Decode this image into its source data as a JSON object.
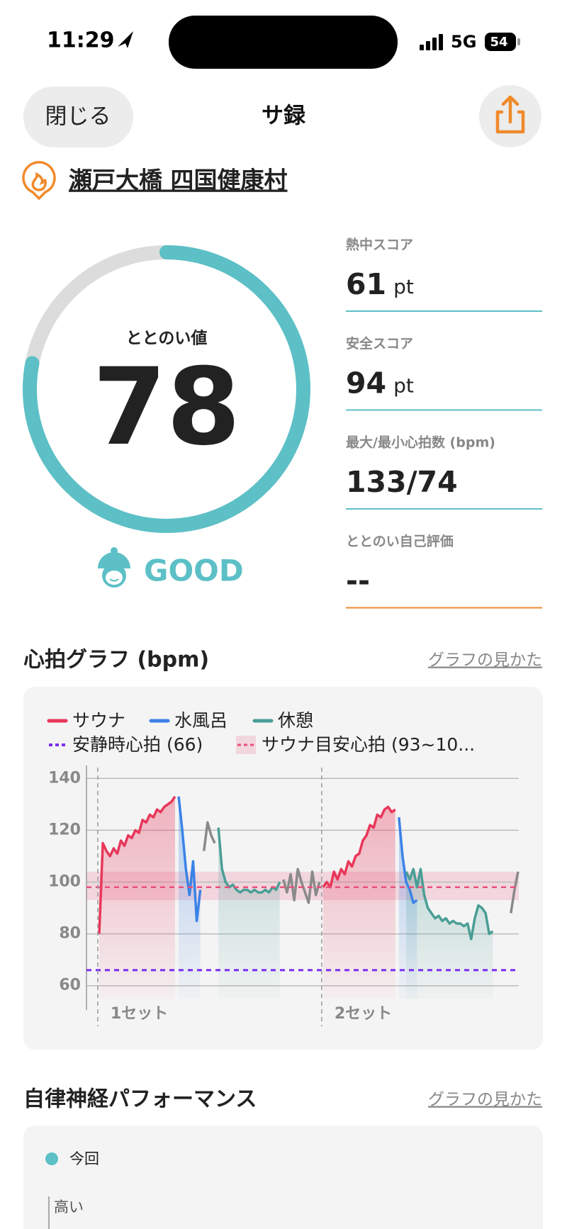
{
  "status_bar": {
    "time": "11:29",
    "network": "5G",
    "battery": "54"
  },
  "header": {
    "close": "閉じる",
    "title": "サ録"
  },
  "location": "瀬戸大橋 四国健康村",
  "score": {
    "label": "ととのい値",
    "value": 78,
    "range": [
      0,
      100
    ],
    "rating": "GOOD"
  },
  "stats": [
    {
      "label": "熱中スコア",
      "value": "61",
      "unit": "pt"
    },
    {
      "label": "安全スコア",
      "value": "94",
      "unit": "pt"
    },
    {
      "label": "最大/最小心拍数 (bpm)",
      "value": "133/74"
    },
    {
      "label": "ととのい自己評価",
      "value": "--"
    }
  ],
  "chart_data": {
    "type": "line",
    "title": "心拍グラフ (bpm)",
    "link": "グラフの見かた",
    "ylim": [
      55,
      145
    ],
    "yticks": [
      60,
      80,
      100,
      120,
      140
    ],
    "grid": true,
    "legend": "top-left",
    "series": [
      {
        "name": "サウナ",
        "color": "#e8375a",
        "values": [
          80,
          115,
          112,
          110,
          113,
          111,
          116,
          114,
          118,
          117,
          120,
          119,
          124,
          123,
          126,
          125,
          128,
          127,
          129,
          130,
          131,
          133,
          null,
          null,
          null,
          null,
          null,
          null,
          null,
          null,
          null,
          null,
          null,
          null,
          null,
          null,
          null,
          null,
          null,
          null,
          null,
          null,
          null,
          null,
          null,
          null,
          null,
          null,
          null,
          null,
          null,
          null,
          null,
          null,
          null,
          null,
          null,
          null,
          null,
          null,
          null,
          null,
          98,
          100,
          98,
          104,
          101,
          105,
          103,
          108,
          106,
          110,
          111,
          116,
          118,
          122,
          121,
          126,
          125,
          128,
          129,
          127,
          128,
          null,
          null,
          null,
          null,
          null,
          null,
          null,
          null,
          null,
          null,
          null,
          null,
          null,
          null,
          null,
          null,
          null,
          null,
          null,
          null,
          null,
          null,
          null,
          null,
          null,
          null,
          null,
          null,
          null,
          null,
          null,
          null,
          null,
          null
        ]
      },
      {
        "name": "水風呂",
        "color": "#3b82e6",
        "values": [
          null,
          null,
          null,
          null,
          null,
          null,
          null,
          null,
          null,
          null,
          null,
          null,
          null,
          null,
          null,
          null,
          null,
          null,
          null,
          null,
          null,
          null,
          133,
          120,
          105,
          95,
          108,
          85,
          97,
          null,
          null,
          null,
          null,
          null,
          null,
          null,
          null,
          null,
          null,
          null,
          null,
          null,
          null,
          null,
          null,
          null,
          null,
          null,
          null,
          null,
          null,
          null,
          null,
          null,
          null,
          null,
          null,
          null,
          null,
          null,
          null,
          null,
          null,
          null,
          null,
          null,
          null,
          null,
          null,
          null,
          null,
          null,
          null,
          null,
          null,
          null,
          null,
          null,
          null,
          null,
          null,
          null,
          null,
          125,
          110,
          100,
          97,
          92,
          93,
          null,
          null,
          null,
          null,
          null,
          null,
          null,
          null,
          null,
          null,
          null,
          null,
          null,
          null,
          null,
          null,
          null,
          null,
          null,
          null,
          null,
          null,
          null,
          null,
          null,
          null,
          null,
          null
        ]
      },
      {
        "name": "休憩",
        "color": "#4a9e96",
        "values": [
          null,
          null,
          null,
          null,
          null,
          null,
          null,
          null,
          null,
          null,
          null,
          null,
          null,
          null,
          null,
          null,
          null,
          null,
          null,
          null,
          null,
          null,
          null,
          null,
          null,
          null,
          null,
          null,
          null,
          null,
          null,
          null,
          null,
          121,
          105,
          100,
          98,
          99,
          97,
          96,
          97,
          97,
          96,
          97,
          96,
          96,
          97,
          96,
          98,
          97,
          100,
          null,
          null,
          null,
          null,
          null,
          null,
          null,
          null,
          null,
          null,
          null,
          null,
          null,
          null,
          null,
          null,
          null,
          null,
          null,
          null,
          null,
          null,
          null,
          null,
          null,
          null,
          null,
          null,
          null,
          null,
          null,
          null,
          null,
          null,
          104,
          101,
          105,
          98,
          105,
          95,
          90,
          88,
          86,
          87,
          85,
          86,
          84,
          85,
          84,
          84,
          83,
          84,
          78,
          86,
          91,
          90,
          88,
          80,
          81,
          null,
          null,
          null
        ]
      },
      {
        "color": "#8a8a8a",
        "values": [
          null,
          null,
          null,
          null,
          null,
          null,
          null,
          null,
          null,
          null,
          null,
          null,
          null,
          null,
          null,
          null,
          null,
          null,
          null,
          null,
          null,
          null,
          null,
          null,
          null,
          null,
          null,
          null,
          null,
          112,
          123,
          118,
          115,
          null,
          null,
          null,
          null,
          null,
          null,
          null,
          null,
          null,
          null,
          null,
          null,
          null,
          null,
          null,
          null,
          null,
          null,
          101,
          96,
          103,
          93,
          105,
          100,
          96,
          92,
          104,
          95,
          100,
          null,
          null,
          null,
          null,
          null,
          null,
          null,
          null,
          null,
          null,
          null,
          null,
          null,
          null,
          null,
          null,
          null,
          null,
          null,
          null,
          null,
          null,
          null,
          null,
          null,
          null,
          null,
          null,
          null,
          null,
          null,
          null,
          null,
          null,
          null,
          null,
          null,
          null,
          null,
          null,
          null,
          null,
          null,
          null,
          null,
          null,
          null,
          null,
          null,
          null,
          null,
          null,
          88,
          97,
          104
        ]
      }
    ],
    "resting": {
      "name": "安静時心拍 (66)",
      "value": 66,
      "color": "#7b2ff0"
    },
    "target": {
      "name": "サウナ目安心拍 (93~10...",
      "range": [
        93,
        104
      ],
      "value": 98,
      "color": "#e8507a"
    },
    "sets": [
      "1セット",
      "2セット"
    ]
  },
  "autonomic": {
    "title": "自律神経パフォーマンス",
    "link": "グラフの見かた",
    "legend": "今回",
    "axis_label": "高い"
  }
}
